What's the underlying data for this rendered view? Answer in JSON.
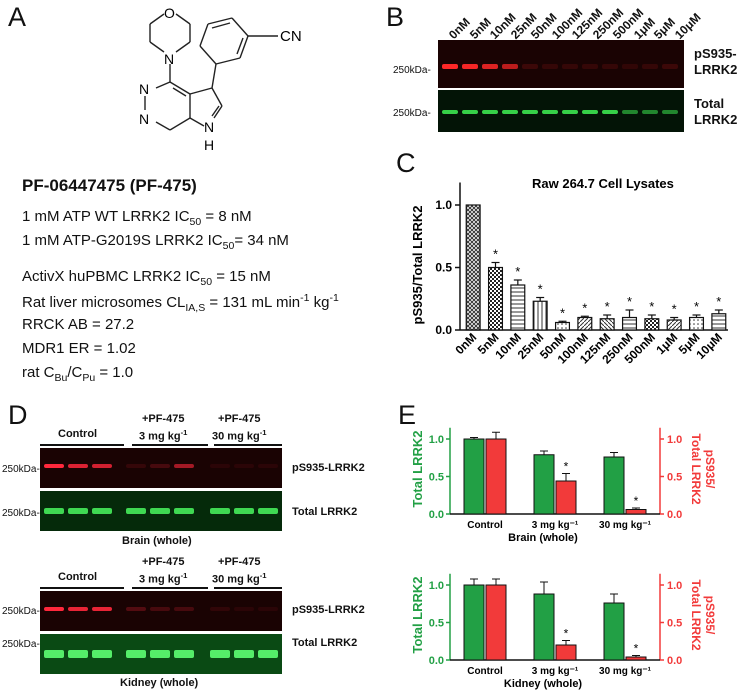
{
  "panel_labels": {
    "a": "A",
    "b": "B",
    "c": "C",
    "d": "D",
    "e": "E"
  },
  "panelA": {
    "structure_label": "CN",
    "atom_n": "N",
    "atom_o": "O",
    "atom_h": "H",
    "compound": "PF-06447475 (PF-475)",
    "line1_pre": "1 mM ATP  WT LRRK2 IC",
    "line1_sub": "50",
    "line1_post": " = 8 nM",
    "line2_pre": "1 mM ATP-G2019S LRRK2 IC",
    "line2_sub": "50",
    "line2_post": "= 34 nM",
    "line3_pre": "ActivX huPBMC LRRK2 IC",
    "line3_sub": "50",
    "line3_post": " = 15 nM",
    "line4_pre": "Rat liver microsomes CL",
    "line4_sub": "IA,S",
    "line4_mid": " = 131 mL min",
    "line4_sup1": "-1",
    "line4_mid2": " kg",
    "line4_sup2": "-1",
    "line5": "RRCK AB = 27.2",
    "line6": "MDR1 ER = 1.02",
    "line7_pre": "rat C",
    "line7_sub1": "Bu",
    "line7_mid": "/C",
    "line7_sub2": "Pu",
    "line7_post": " = 1.0"
  },
  "panelB": {
    "lanes": [
      "0nM",
      "5nM",
      "10nM",
      "25nM",
      "50nM",
      "100nM",
      "125nM",
      "250nM",
      "500nM",
      "1μM",
      "5μM",
      "10μM"
    ],
    "marker1": "250kDa-",
    "marker2": "250kDa-",
    "band1_a": "pS935-",
    "band1_b": "LRRK2",
    "band2_a": "Total",
    "band2_b": "LRRK2"
  },
  "chart_data": [
    {
      "type": "bar",
      "title": "Raw 264.7 Cell Lysates",
      "ylabel": "pS935/Total LRRK2",
      "xlabel": "",
      "categories": [
        "0nM",
        "5nM",
        "10nM",
        "25nM",
        "50nM",
        "100nM",
        "125nM",
        "250nM",
        "500nM",
        "1μM",
        "5μM",
        "10μM"
      ],
      "values": [
        1.0,
        0.5,
        0.36,
        0.23,
        0.06,
        0.1,
        0.09,
        0.1,
        0.09,
        0.08,
        0.1,
        0.13
      ],
      "errors": [
        0.0,
        0.04,
        0.04,
        0.03,
        0.01,
        0.01,
        0.03,
        0.06,
        0.03,
        0.02,
        0.02,
        0.03
      ],
      "significance": [
        "",
        "*",
        "*",
        "*",
        "*",
        "*",
        "*",
        "*",
        "*",
        "*",
        "*",
        "*"
      ],
      "yticks": [
        "0.0",
        "0.5",
        "1.0"
      ],
      "ylim": [
        0,
        1.2
      ]
    },
    {
      "type": "bar",
      "title": "",
      "xlabel": "Brain (whole)",
      "ylabel": "Total LRRK2",
      "y2label": "pS935/ Total LRRK2",
      "categories": [
        "Control",
        "3 mg kg⁻¹",
        "30 mg kg⁻¹"
      ],
      "series": [
        {
          "values": [
            1.0,
            0.79,
            0.76
          ],
          "errors": [
            0.02,
            0.05,
            0.06
          ],
          "color": "#22a045"
        },
        {
          "values": [
            1.0,
            0.44,
            0.06
          ],
          "errors": [
            0.09,
            0.1,
            0.02
          ],
          "color": "#f23a3a"
        }
      ],
      "significance": [
        [
          "",
          "",
          ""
        ],
        [
          "",
          "*",
          "*"
        ]
      ],
      "yticks": [
        "0.0",
        "0.5",
        "1.0"
      ],
      "ylim": [
        0,
        1.2
      ]
    },
    {
      "type": "bar",
      "title": "",
      "xlabel": "Kidney (whole)",
      "ylabel": "Total LRRK2",
      "y2label": "pS935/ Total LRRK2",
      "categories": [
        "Control",
        "3 mg kg⁻¹",
        "30 mg kg⁻¹"
      ],
      "series": [
        {
          "values": [
            1.0,
            0.88,
            0.76
          ],
          "errors": [
            0.08,
            0.16,
            0.12
          ],
          "color": "#22a045"
        },
        {
          "values": [
            1.0,
            0.2,
            0.04
          ],
          "errors": [
            0.08,
            0.06,
            0.02
          ],
          "color": "#f23a3a"
        }
      ],
      "significance": [
        [
          "",
          "",
          ""
        ],
        [
          "",
          "*",
          "*"
        ]
      ],
      "yticks": [
        "0.0",
        "0.5",
        "1.0"
      ],
      "ylim": [
        0,
        1.2
      ]
    }
  ],
  "panelD": {
    "brain": {
      "group1": "Control",
      "group2_a": "+PF-475",
      "group2_b": "3 mg kg",
      "group2_sup": "-1",
      "group3_a": "+PF-475",
      "group3_b": "30 mg kg",
      "group3_sup": "-1",
      "marker1": "250kDa-",
      "marker2": "250kDa-",
      "band1": "pS935-LRRK2",
      "band2": "Total LRRK2",
      "tissue": "Brain (whole)"
    },
    "kidney": {
      "group1": "Control",
      "group2_a": "+PF-475",
      "group2_b": "3 mg kg",
      "group2_sup": "-1",
      "group3_a": "+PF-475",
      "group3_b": "30 mg kg",
      "group3_sup": "-1",
      "marker1": "250kDa-",
      "marker2": "250kDa-",
      "band1": "pS935-LRRK2",
      "band2": "Total LRRK2",
      "tissue": "Kidney (whole)"
    }
  },
  "colors": {
    "green": "#22a045",
    "red": "#f23a3a",
    "blot_dark": "#1a0303",
    "blot_green_dark": "#032006"
  }
}
